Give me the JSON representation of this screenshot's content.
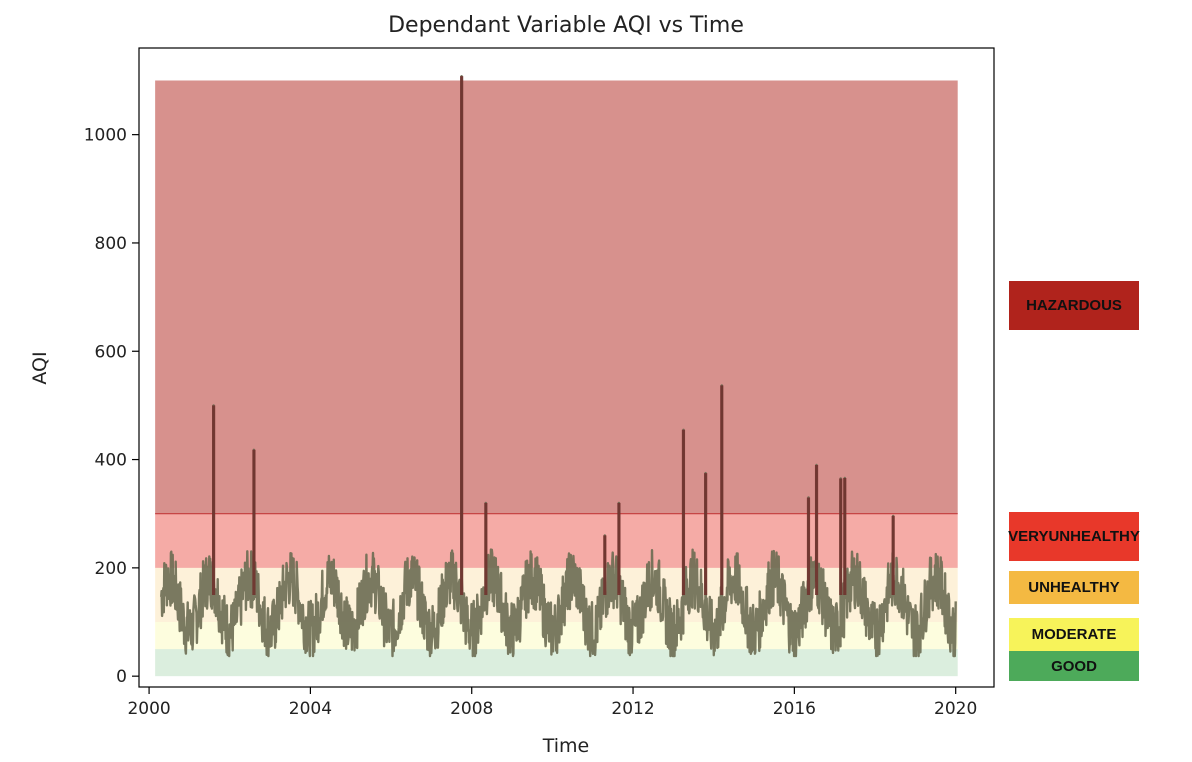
{
  "chart_data": {
    "type": "line",
    "title": "Dependant Variable AQI vs Time",
    "xlabel": "Time",
    "ylabel": "AQI",
    "xlim": [
      1999.75,
      2020.95
    ],
    "ylim": [
      -20,
      1160
    ],
    "xticks": [
      "2000",
      "2004",
      "2008",
      "2012",
      "2016",
      "2020"
    ],
    "yticks": [
      "0",
      "200",
      "400",
      "600",
      "800",
      "1000"
    ],
    "grid": false,
    "bands": [
      {
        "name": "GOOD",
        "from": 0,
        "to": 50,
        "color": "#4daa5a"
      },
      {
        "name": "MODERATE",
        "from": 50,
        "to": 100,
        "color": "#f7f35a"
      },
      {
        "name": "UNHEALTHY",
        "from": 100,
        "to": 200,
        "color": "#f4b942"
      },
      {
        "name": "VERY UNHEALTHY",
        "from": 200,
        "to": 300,
        "color": "#e8382a"
      },
      {
        "name": "HAZARDOUS",
        "from": 300,
        "to": 1100,
        "color": "#b0231c"
      }
    ],
    "reference_line": {
      "y": 300,
      "color": "#c43c3c"
    },
    "series": [
      {
        "color": "#6b6b52",
        "x_start": 2000.3,
        "x_end": 2020.0,
        "seasonal_low": 45,
        "seasonal_high": 220,
        "spikes": [
          {
            "x": 2001.6,
            "y": 500
          },
          {
            "x": 2002.6,
            "y": 418
          },
          {
            "x": 2007.75,
            "y": 1108
          },
          {
            "x": 2008.35,
            "y": 320
          },
          {
            "x": 2011.3,
            "y": 260
          },
          {
            "x": 2011.65,
            "y": 320
          },
          {
            "x": 2013.25,
            "y": 455
          },
          {
            "x": 2013.8,
            "y": 375
          },
          {
            "x": 2014.2,
            "y": 537
          },
          {
            "x": 2016.35,
            "y": 330
          },
          {
            "x": 2016.55,
            "y": 390
          },
          {
            "x": 2017.15,
            "y": 365
          },
          {
            "x": 2017.25,
            "y": 366
          },
          {
            "x": 2018.45,
            "y": 296
          }
        ]
      }
    ]
  },
  "legend": [
    {
      "key": "hazardous",
      "lines": [
        "HAZARDOUS"
      ],
      "color": "#b0231c",
      "text_color": "#111111"
    },
    {
      "key": "very-unhealthy",
      "lines": [
        "VERY",
        "UNHEALTHY"
      ],
      "color": "#e8382a",
      "text_color": "#111111"
    },
    {
      "key": "unhealthy",
      "lines": [
        "UNHEALTHY"
      ],
      "color": "#f4b942",
      "text_color": "#111111"
    },
    {
      "key": "moderate",
      "lines": [
        "MODERATE"
      ],
      "color": "#f7f35a",
      "text_color": "#111111"
    },
    {
      "key": "good",
      "lines": [
        "GOOD"
      ],
      "color": "#4daa5a",
      "text_color": "#111111"
    }
  ]
}
